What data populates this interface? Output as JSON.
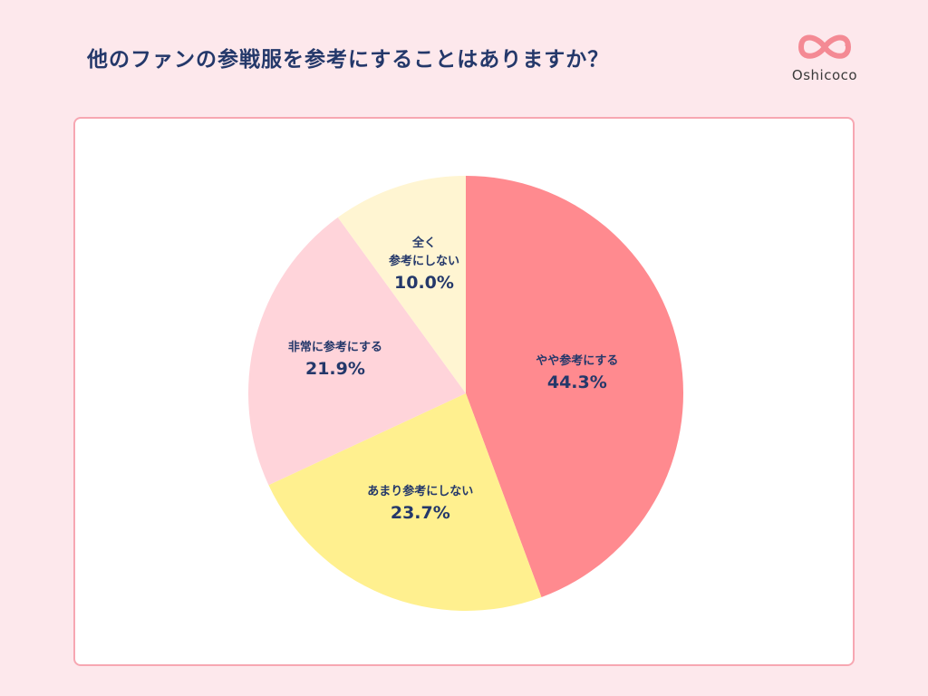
{
  "header": {
    "title": "他のファンの参戦服を参考にすることはありますか？",
    "logo_text": "Oshicoco",
    "logo_icon": "infinity-heart-icon"
  },
  "colors": {
    "background": "#fde8ec",
    "card_border": "#f7a7b2",
    "text": "#24386a",
    "logo": "#f48a94"
  },
  "chart_data": {
    "type": "pie",
    "title": "他のファンの参戦服を参考にすることはありますか？",
    "start_angle": "12 o'clock, clockwise",
    "categories": [
      "やや参考にする",
      "あまり参考にしない",
      "非常に参考にする",
      "全く参考にしない"
    ],
    "values": [
      44.3,
      23.7,
      21.9,
      10.0
    ],
    "unit": "%",
    "colors": [
      "#ff8a8f",
      "#fff08f",
      "#ffd4da",
      "#fff5d2"
    ],
    "labels": [
      {
        "name": "やや参考にする",
        "pct": "44.3%"
      },
      {
        "name": "あまり参考にしない",
        "pct": "23.7%"
      },
      {
        "name": "非常に参考にする",
        "pct": "21.9%"
      },
      {
        "name_lines": [
          "全く",
          "参考にしない"
        ],
        "pct": "10.0%"
      }
    ],
    "legend": "none (labels inside slices)"
  }
}
